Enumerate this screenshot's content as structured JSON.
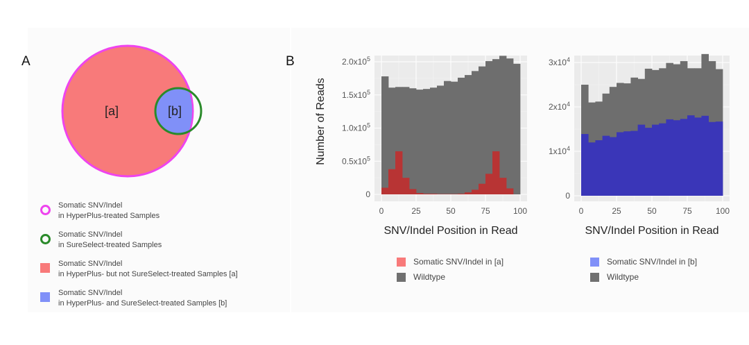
{
  "panels": {
    "a_label": "A",
    "b_label": "B"
  },
  "venn": {
    "region_a_label": "[a]",
    "region_b_label": "[b]",
    "colors": {
      "hyperplus_outline": "#ee44ee",
      "sureselect_outline": "#2a8a2a",
      "region_a_fill": "#f87a7a",
      "region_b_fill": "#8090f8"
    },
    "legend": [
      {
        "type": "ring",
        "color": "#ee44ee",
        "line1": "Somatic SNV/Indel",
        "line2": "in HyperPlus-treated Samples"
      },
      {
        "type": "ring",
        "color": "#2a8a2a",
        "line1": "Somatic SNV/Indel",
        "line2": "in SureSelect-treated Samples"
      },
      {
        "type": "square",
        "color": "#f87a7a",
        "line1": "Somatic SNV/Indel",
        "line2": "in HyperPlus- but not SureSelect-treated Samples [a]"
      },
      {
        "type": "square",
        "color": "#8090f8",
        "line1": "Somatic SNV/Indel",
        "line2": "in HyperPlus- and SureSelect-treated Samples [b]"
      }
    ]
  },
  "chart_data": [
    {
      "type": "bar",
      "stacked": false,
      "overlay": true,
      "title": "",
      "xlabel": "SNV/Indel Position in Read",
      "ylabel": "Number of Reads",
      "xlim": [
        0,
        100
      ],
      "ylim": [
        0,
        205000
      ],
      "xticks": [
        0,
        25,
        50,
        75,
        100
      ],
      "xtick_labels": [
        "0",
        "25",
        "50",
        "75",
        "100"
      ],
      "yticks": [
        0,
        50000,
        100000,
        150000,
        200000
      ],
      "ytick_labels": [
        {
          "base": "0",
          "exp": ""
        },
        {
          "base": "0.5x10",
          "exp": "5"
        },
        {
          "base": "1.0x10",
          "exp": "5"
        },
        {
          "base": "1.5x10",
          "exp": "5"
        },
        {
          "base": "2.0x10",
          "exp": "5"
        }
      ],
      "grid": true,
      "bin_width": 5,
      "bins": [
        0,
        5,
        10,
        15,
        20,
        25,
        30,
        35,
        40,
        45,
        50,
        55,
        60,
        65,
        70,
        75,
        80,
        85,
        90,
        95
      ],
      "series": [
        {
          "name": "Wildtype",
          "color": "#6e6e6e",
          "values": [
            178000,
            161000,
            162000,
            162000,
            160000,
            158000,
            159000,
            161000,
            164000,
            171000,
            170000,
            176000,
            180000,
            186000,
            193000,
            201000,
            204000,
            209000,
            205000,
            197000
          ]
        },
        {
          "name": "Somatic SNV/Indel in [a]",
          "color": "#b83434",
          "values": [
            10000,
            38000,
            65000,
            25000,
            8000,
            2000,
            1000,
            1000,
            500,
            500,
            500,
            1000,
            3000,
            7000,
            16000,
            31000,
            65000,
            25000,
            9000,
            0
          ]
        }
      ],
      "legend": [
        {
          "label": "Somatic SNV/Indel in [a]",
          "color": "#f87a7a"
        },
        {
          "label": "Wildtype",
          "color": "#707070"
        }
      ],
      "legend_position": "bottom"
    },
    {
      "type": "bar",
      "stacked": false,
      "overlay": true,
      "title": "",
      "xlabel": "SNV/Indel Position in Read",
      "ylabel": "",
      "xlim": [
        0,
        100
      ],
      "ylim": [
        0,
        32000
      ],
      "xticks": [
        0,
        25,
        50,
        75,
        100
      ],
      "xtick_labels": [
        "0",
        "25",
        "50",
        "75",
        "100"
      ],
      "yticks": [
        0,
        10000,
        20000,
        30000
      ],
      "ytick_labels": [
        {
          "base": "0",
          "exp": ""
        },
        {
          "base": "1x10",
          "exp": "4"
        },
        {
          "base": "2x10",
          "exp": "4"
        },
        {
          "base": "3x10",
          "exp": "4"
        }
      ],
      "grid": true,
      "bin_width": 5,
      "bins": [
        0,
        5,
        10,
        15,
        20,
        25,
        30,
        35,
        40,
        45,
        50,
        55,
        60,
        65,
        70,
        75,
        80,
        85,
        90,
        95
      ],
      "series": [
        {
          "name": "Wildtype",
          "color": "#6e6e6e",
          "values": [
            25000,
            21000,
            21200,
            23000,
            24500,
            25400,
            25300,
            26600,
            26300,
            28600,
            28300,
            28700,
            29900,
            29600,
            30300,
            28700,
            28700,
            31900,
            30300,
            28500
          ]
        },
        {
          "name": "Somatic SNV/Indel in [b]",
          "color": "#3a36b8",
          "values": [
            13900,
            12000,
            12500,
            13500,
            13200,
            14300,
            14500,
            14600,
            16000,
            15300,
            16000,
            16300,
            17200,
            17000,
            17300,
            18100,
            17600,
            18000,
            16600,
            16700
          ]
        }
      ],
      "legend": [
        {
          "label": "Somatic SNV/Indel in [b]",
          "color": "#8090f8"
        },
        {
          "label": "Wildtype",
          "color": "#707070"
        }
      ],
      "legend_position": "bottom"
    }
  ]
}
